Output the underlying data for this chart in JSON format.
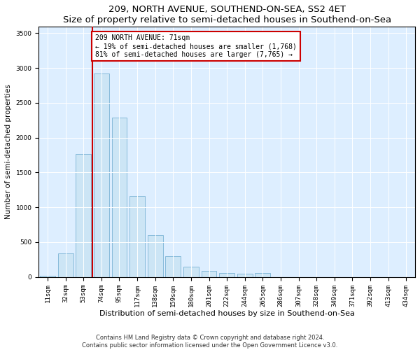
{
  "title": "209, NORTH AVENUE, SOUTHEND-ON-SEA, SS2 4ET",
  "subtitle": "Size of property relative to semi-detached houses in Southend-on-Sea",
  "xlabel": "Distribution of semi-detached houses by size in Southend-on-Sea",
  "ylabel": "Number of semi-detached properties",
  "categories": [
    "11sqm",
    "32sqm",
    "53sqm",
    "74sqm",
    "95sqm",
    "117sqm",
    "138sqm",
    "159sqm",
    "180sqm",
    "201sqm",
    "222sqm",
    "244sqm",
    "265sqm",
    "286sqm",
    "307sqm",
    "328sqm",
    "349sqm",
    "371sqm",
    "392sqm",
    "413sqm",
    "434sqm"
  ],
  "values": [
    15,
    335,
    1760,
    2920,
    2290,
    1160,
    595,
    300,
    150,
    90,
    55,
    50,
    55,
    0,
    0,
    0,
    0,
    0,
    0,
    0,
    0
  ],
  "bar_color": "#cce5f5",
  "bar_edge_color": "#7ab3d4",
  "annotation_title": "209 NORTH AVENUE: 71sqm",
  "annotation_line1": "← 19% of semi-detached houses are smaller (1,768)",
  "annotation_line2": "81% of semi-detached houses are larger (7,765) →",
  "annotation_box_color": "#ffffff",
  "annotation_box_edge": "#cc0000",
  "vline_color": "#cc0000",
  "ylim": [
    0,
    3600
  ],
  "yticks": [
    0,
    500,
    1000,
    1500,
    2000,
    2500,
    3000,
    3500
  ],
  "background_color": "#ddeeff",
  "footer1": "Contains HM Land Registry data © Crown copyright and database right 2024.",
  "footer2": "Contains public sector information licensed under the Open Government Licence v3.0.",
  "title_fontsize": 9.5,
  "subtitle_fontsize": 8.5,
  "xlabel_fontsize": 8.0,
  "ylabel_fontsize": 7.5,
  "tick_fontsize": 6.5,
  "annotation_fontsize": 7.0,
  "footer_fontsize": 6.0
}
